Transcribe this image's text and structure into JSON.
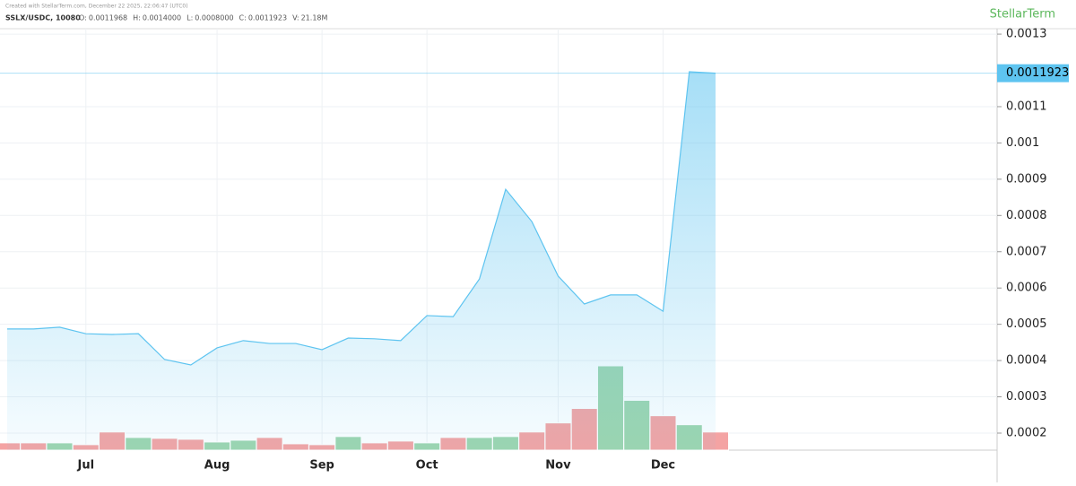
{
  "chart_data": {
    "type": "area",
    "header": "Created with StellarTerm.com, December 22 2025, 22:06:47 (UTC0)",
    "symbol": "SSLX/USDC, 10080",
    "brand": "StellarTerm",
    "ohlc": [
      {
        "label": "O:",
        "value": "0.0011968"
      },
      {
        "label": "H:",
        "value": "0.0014000"
      },
      {
        "label": "L:",
        "value": "0.0008000"
      },
      {
        "label": "C:",
        "value": "0.0011923"
      },
      {
        "label": "V:",
        "value": "21.18M"
      }
    ],
    "categories": [
      null,
      null,
      null,
      "Jul",
      null,
      null,
      null,
      null,
      "Aug",
      null,
      null,
      null,
      "Sep",
      null,
      null,
      null,
      "Oct",
      null,
      null,
      null,
      null,
      "Nov",
      null,
      null,
      null,
      "Dec",
      null,
      null
    ],
    "series": [
      {
        "name": "SSLX/USDC",
        "color": "#5ec4f0",
        "values": [
          0.000487,
          0.000487,
          0.000492,
          0.000474,
          0.000472,
          0.000474,
          0.000403,
          0.000388,
          0.000435,
          0.000455,
          0.000447,
          0.000447,
          0.00043,
          0.000462,
          0.00046,
          0.000455,
          0.000524,
          0.000521,
          0.000625,
          0.000872,
          0.000783,
          0.000633,
          0.000556,
          0.000581,
          0.000581,
          0.000536,
          0.0011962,
          0.0011923
        ]
      },
      {
        "name": "V",
        "type": "bar",
        "values": [
          8.5,
          8.5,
          8.5,
          6.4,
          21.2,
          14.8,
          13.8,
          12.7,
          9.5,
          11.6,
          14.8,
          7.4,
          6.4,
          15.9,
          8.5,
          10.6,
          8.5,
          14.8,
          14.8,
          15.9,
          21.2,
          31.8,
          48.7,
          98.5,
          58.2,
          40.2,
          29.7,
          21.18
        ],
        "colors": [
          "#f4a3a3",
          "#f4a3a3",
          "#9dd5ae",
          "#f4a3a3",
          "#f4a3a3",
          "#9dd5ae",
          "#f4a3a3",
          "#f4a3a3",
          "#9dd5ae",
          "#9dd5ae",
          "#f4a3a3",
          "#f4a3a3",
          "#f4a3a3",
          "#9dd5ae",
          "#f4a3a3",
          "#f4a3a3",
          "#9dd5ae",
          "#f4a3a3",
          "#9dd5ae",
          "#9dd5ae",
          "#f4a3a3",
          "#f4a3a3",
          "#f4a3a3",
          "#9dd5ae",
          "#9dd5ae",
          "#f4a3a3",
          "#9dd5ae",
          "#f4a3a3"
        ]
      }
    ],
    "ylim": [
      0.000153,
      0.001315
    ],
    "yticks": [
      0.0002,
      0.0003,
      0.0004,
      0.0005,
      0.0006,
      0.0007,
      0.0008,
      0.0009,
      0.001,
      0.0011,
      0.0013
    ],
    "grid": true
  }
}
